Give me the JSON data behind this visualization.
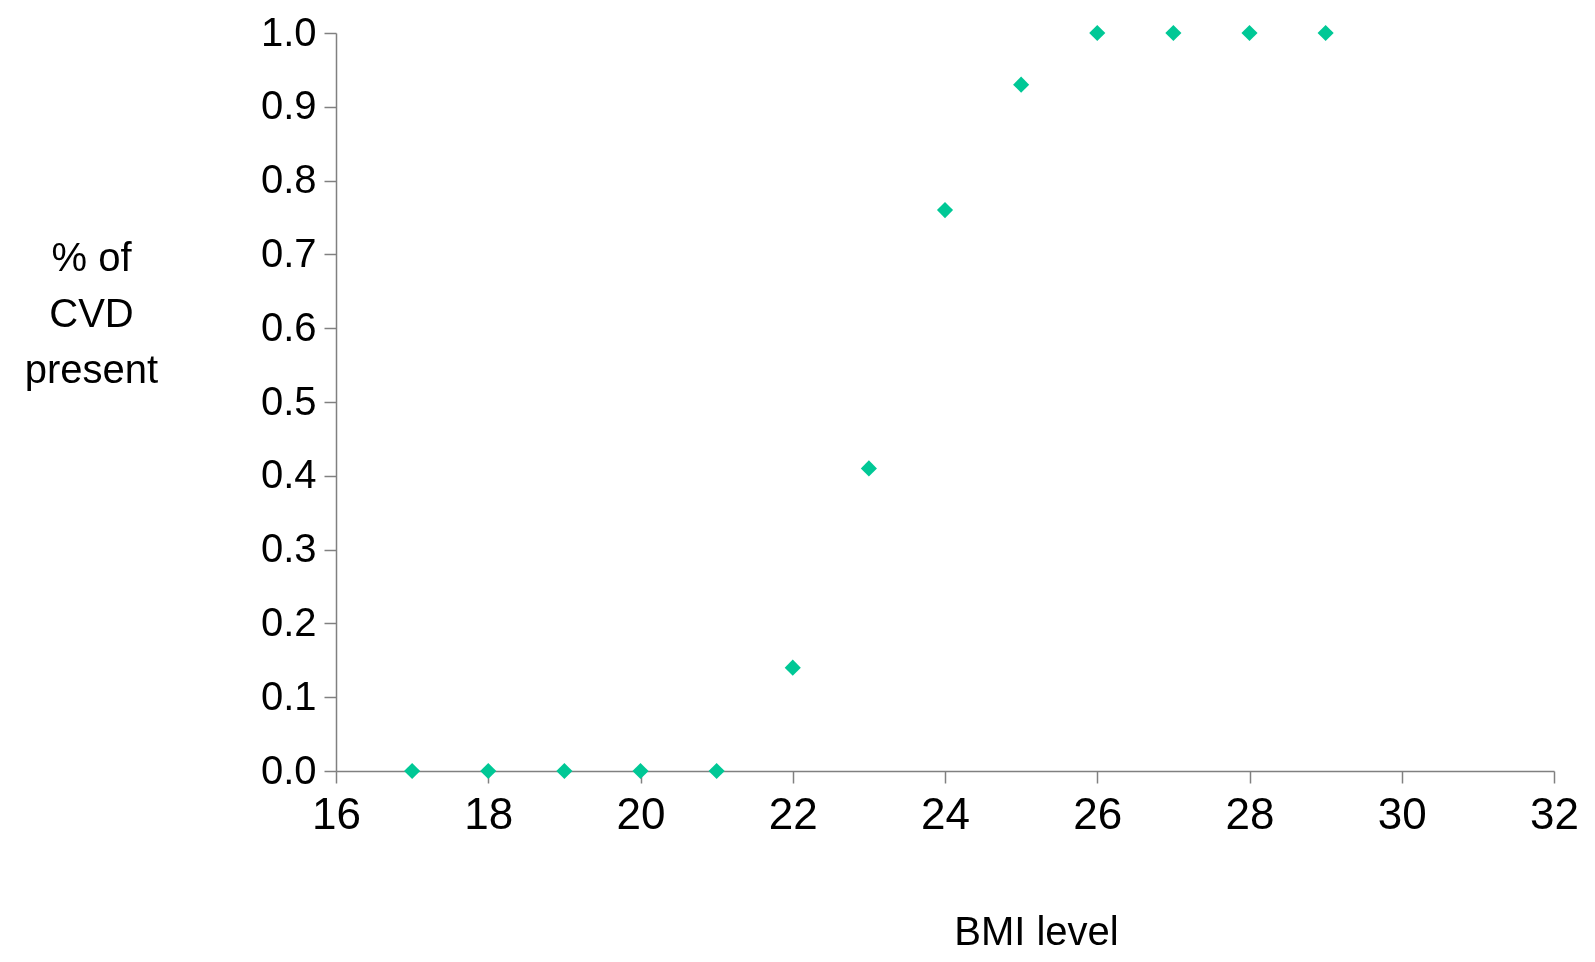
{
  "chart_data": {
    "type": "scatter",
    "xlabel": "BMI level",
    "ylabel": "% of CVD present",
    "x": [
      17,
      18,
      19,
      20,
      21,
      22,
      23,
      24,
      25,
      26,
      27,
      28,
      29
    ],
    "series": [
      {
        "color": "#00c896",
        "values": [
          0,
          0,
          0,
          0,
          0,
          0.14,
          0.41,
          0.76,
          0.93,
          1,
          1,
          1,
          1
        ]
      }
    ],
    "xlim": [
      16,
      32
    ],
    "xticks": [
      16,
      18,
      20,
      22,
      24,
      26,
      28,
      30,
      32
    ],
    "ylim": [
      0,
      1
    ],
    "yticks": [
      {
        "value": 0,
        "label": "0.0"
      },
      0.1,
      0.2,
      0.3,
      0.4,
      0.5,
      0.6,
      0.7,
      0.8,
      0.9,
      {
        "value": 1,
        "label": "1.0"
      }
    ],
    "grid": false,
    "legend": false,
    "marker": "diamond"
  }
}
